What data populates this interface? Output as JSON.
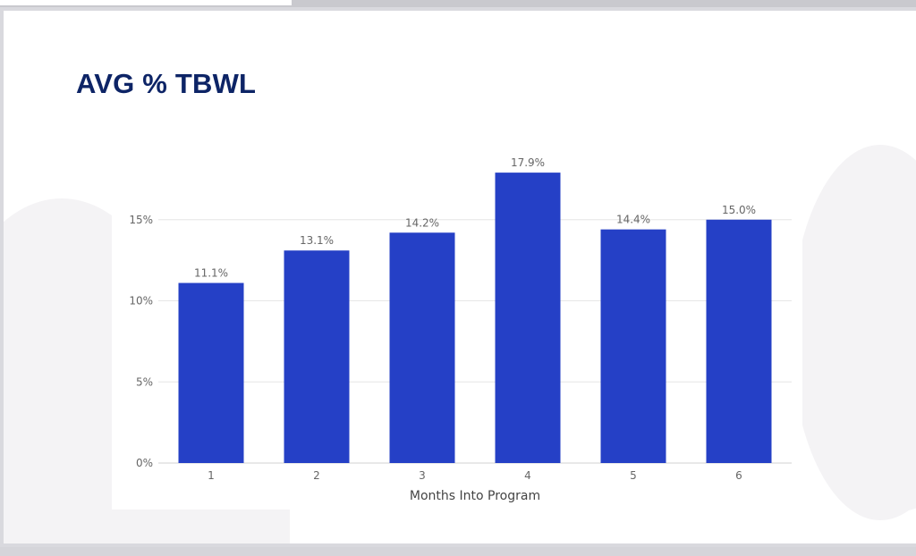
{
  "slide": {
    "title": "AVG % TBWL"
  },
  "colors": {
    "bar": "#2540c6",
    "title": "#0d2466",
    "grid": "#e6e6e6",
    "label": "#666666"
  },
  "chart_data": {
    "type": "bar",
    "title": "",
    "xlabel": "Months Into Program",
    "ylabel": "",
    "categories": [
      "1",
      "2",
      "3",
      "4",
      "5",
      "6"
    ],
    "values": [
      11.1,
      13.1,
      14.2,
      17.9,
      14.4,
      15.0
    ],
    "data_labels": [
      "11.1%",
      "13.1%",
      "14.2%",
      "17.9%",
      "14.4%",
      "15.0%"
    ],
    "y_ticks": [
      0,
      5,
      10,
      15
    ],
    "y_tick_labels": [
      "0%",
      "5%",
      "10%",
      "15%"
    ],
    "ylim": [
      0,
      18.5
    ],
    "grid": true,
    "legend": "none"
  }
}
